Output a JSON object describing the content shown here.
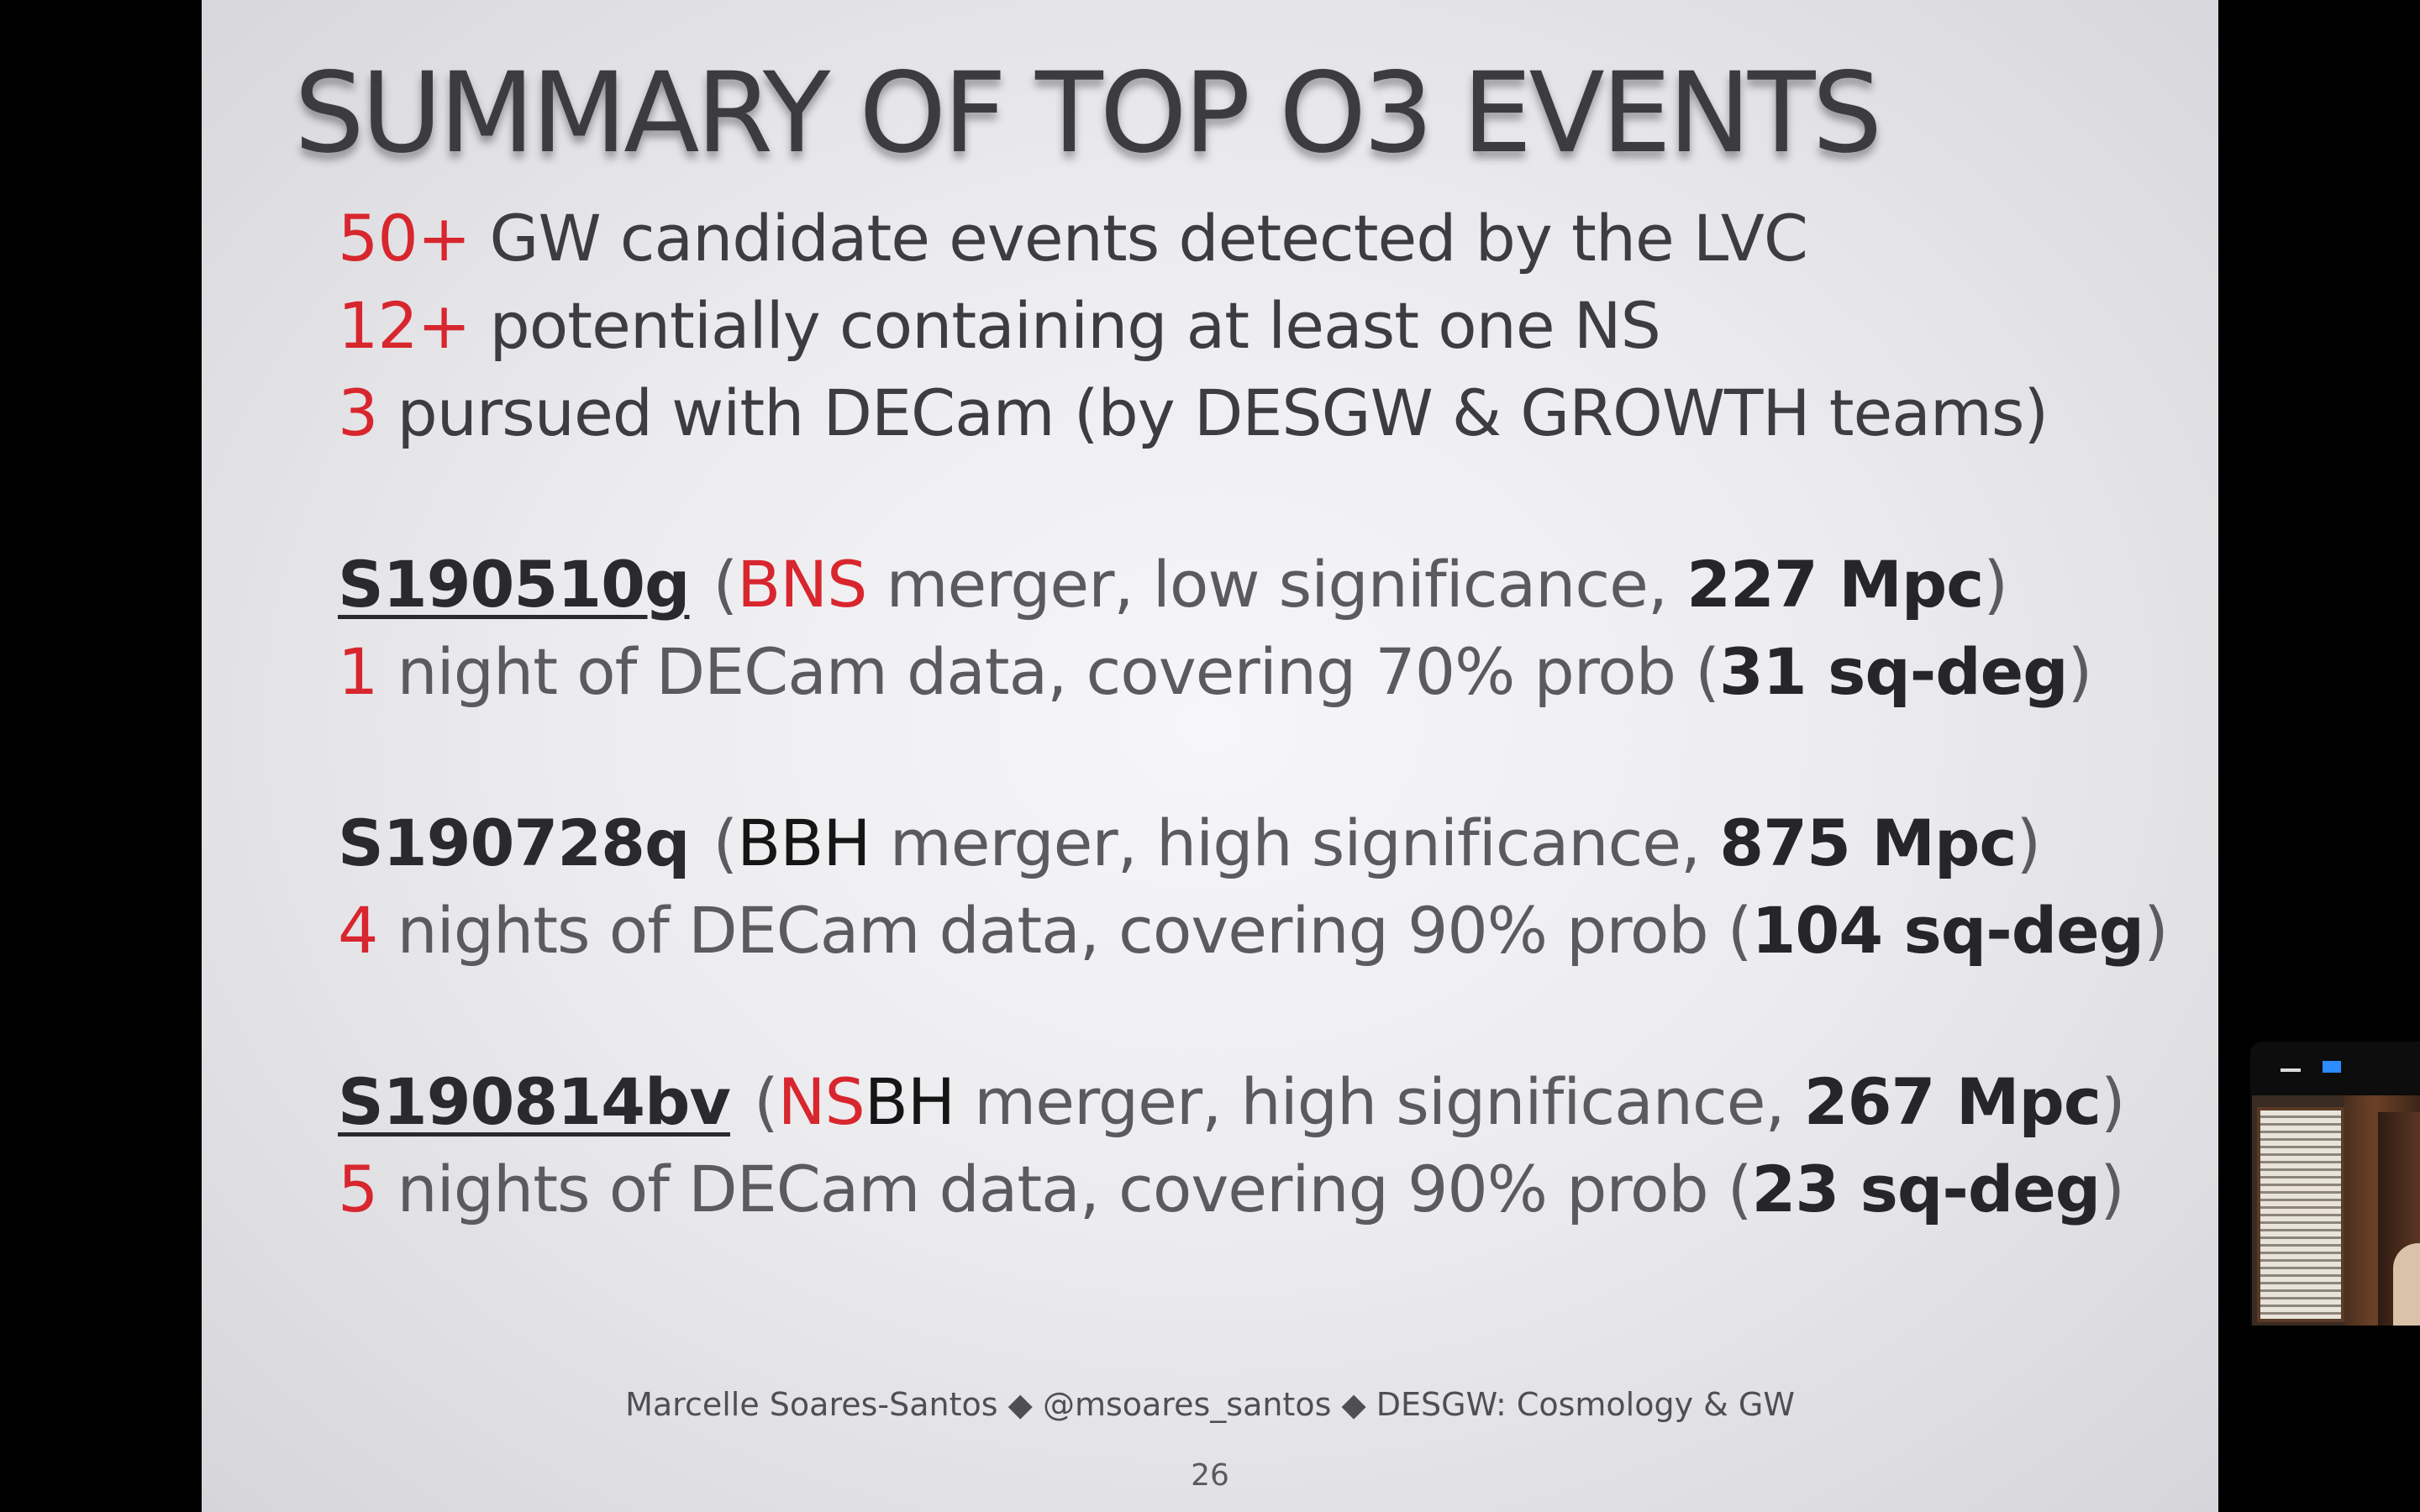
{
  "slide": {
    "title": "SUMMARY OF TOP O3 EVENTS",
    "summary": [
      {
        "count": "50+",
        "text": " GW candidate events detected by the LVC"
      },
      {
        "count": "12+",
        "text": " potentially containing at least one NS"
      },
      {
        "count": "3",
        "text": " pursued with DECam (by DESGW & GROWTH teams)"
      }
    ],
    "events": [
      {
        "id": "S190510g",
        "type_parts": [
          "BNS"
        ],
        "desc": " merger, low significance, ",
        "distance": "227 Mpc",
        "nights": "1",
        "nights_text": " night of DECam data, covering 70% prob (",
        "area": "31 sq-deg"
      },
      {
        "id": "S190728q",
        "type_parts": [
          "BBH"
        ],
        "desc": " merger, high significance, ",
        "distance": "875 Mpc",
        "nights": "4",
        "nights_text": " nights of DECam data, covering 90% prob (",
        "area": "104 sq-deg"
      },
      {
        "id": "S190814bv",
        "type_parts": [
          "NS",
          "BH"
        ],
        "desc": " merger, high significance, ",
        "distance": "267 Mpc",
        "nights": "5",
        "nights_text": " nights of DECam data, covering 90% prob (",
        "area": "23 sq-deg"
      }
    ],
    "footer": "Marcelle Soares-Santos ◆ @msoares_santos ◆ DESGW: Cosmology & GW",
    "page_number": "26"
  },
  "punctuation": {
    "open": "(",
    "close": ")"
  },
  "video_tile": {
    "minimize_icon": "minimize-icon",
    "view_icon": "view-toggle-icon",
    "accent_color": "#2d8cff"
  },
  "colors": {
    "highlight_red": "#d8262e",
    "text_dark": "#3d3d40",
    "background": "#000000"
  }
}
